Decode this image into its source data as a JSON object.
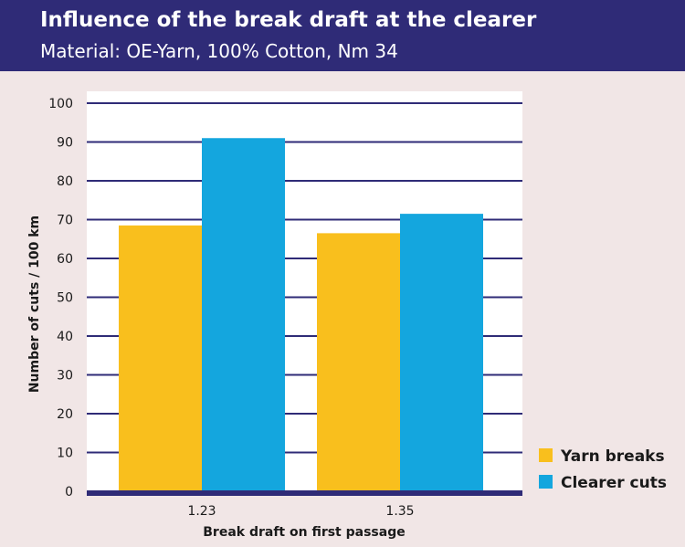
{
  "header": {
    "title": "Influence of the break draft at the clearer",
    "subtitle": "Material: OE-Yarn, 100% Cotton, Nm 34"
  },
  "colors": {
    "header_bg": "#2f2b77",
    "yarn_breaks": "#f9bf1d",
    "clearer_cuts": "#14a6de",
    "grid": "#2f2b77",
    "plot_bg": "#ffffff",
    "page_bg": "#f1e6e6"
  },
  "chart_data": {
    "type": "bar",
    "categories": [
      "1.23",
      "1.35"
    ],
    "series": [
      {
        "name": "Yarn breaks",
        "values": [
          68.5,
          66.5
        ]
      },
      {
        "name": "Clearer cuts",
        "values": [
          91,
          71.5
        ]
      }
    ],
    "xlabel": "Break draft on first passage",
    "ylabel": "Number of cuts / 100 km",
    "ylim": [
      0,
      100
    ],
    "yticks": [
      0,
      10,
      20,
      30,
      40,
      50,
      60,
      70,
      80,
      90,
      100
    ],
    "grid": true,
    "legend_position": "bottom-right"
  }
}
